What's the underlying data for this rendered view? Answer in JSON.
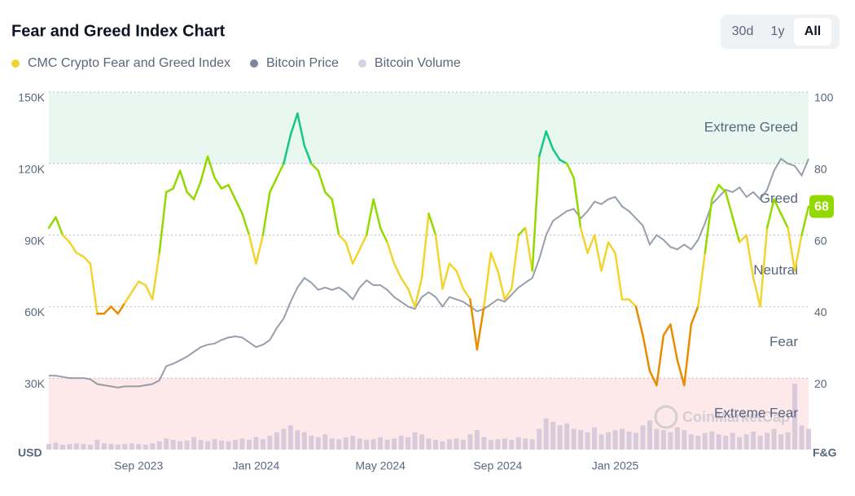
{
  "chart_data": {
    "type": "line",
    "title": "Fear and Greed Index Chart",
    "range_buttons": [
      "30d",
      "1y",
      "All"
    ],
    "selected_range": "All",
    "y_axis_label": "USD",
    "y2_axis_label": "F&G",
    "watermark": "CoinMarketCap",
    "ylim": [
      0,
      150000
    ],
    "yticks": [
      {
        "value": 30000,
        "label": "30K"
      },
      {
        "value": 60000,
        "label": "60K"
      },
      {
        "value": 90000,
        "label": "90K"
      },
      {
        "value": 120000,
        "label": "120K"
      },
      {
        "value": 150000,
        "label": "150K"
      }
    ],
    "y2lim": [
      0,
      100
    ],
    "y2ticks": [
      20,
      40,
      60,
      80,
      100
    ],
    "volume_ylim": [
      0,
      100
    ],
    "grid": true,
    "zones": [
      {
        "name": "Extreme Fear",
        "min": 0,
        "max": 20,
        "color": "#ea3943",
        "band": "#fde9ea"
      },
      {
        "name": "Fear",
        "min": 20,
        "max": 40,
        "color": "#ea8c00"
      },
      {
        "name": "Neutral",
        "min": 40,
        "max": 60,
        "color": "#f3d42f"
      },
      {
        "name": "Greed",
        "min": 60,
        "max": 80,
        "color": "#93d900"
      },
      {
        "name": "Extreme Greed",
        "min": 80,
        "max": 100,
        "color": "#16c784",
        "band": "#e8f8f1"
      }
    ],
    "categories": [
      null,
      null,
      null,
      null,
      null,
      null,
      null,
      null,
      null,
      null,
      null,
      null,
      null,
      "Sep 2023",
      null,
      null,
      null,
      null,
      null,
      null,
      null,
      null,
      null,
      null,
      null,
      null,
      null,
      null,
      null,
      null,
      "Jan 2024",
      null,
      null,
      null,
      null,
      null,
      null,
      null,
      null,
      null,
      null,
      null,
      null,
      null,
      null,
      null,
      null,
      null,
      "May 2024",
      null,
      null,
      null,
      null,
      null,
      null,
      null,
      null,
      null,
      null,
      null,
      null,
      null,
      null,
      null,
      null,
      "Sep 2024",
      null,
      null,
      null,
      null,
      null,
      null,
      null,
      null,
      null,
      null,
      null,
      null,
      null,
      null,
      null,
      null,
      "Jan 2025",
      null,
      null,
      null,
      null,
      null,
      null,
      null,
      null,
      null,
      null,
      null,
      null,
      null,
      null,
      null,
      null,
      null,
      null,
      null,
      null,
      null,
      null,
      null,
      null,
      null,
      null,
      null,
      null
    ],
    "series": [
      {
        "name": "CMC Crypto Fear and Greed Index",
        "color": "#f3d42f",
        "axis": "y2",
        "values": [
          62,
          65,
          60,
          58,
          55,
          54,
          52,
          38,
          38,
          40,
          38,
          41,
          44,
          47,
          46,
          42,
          55,
          72,
          73,
          78,
          72,
          70,
          75,
          82,
          76,
          73,
          74,
          70,
          66,
          60,
          52,
          60,
          72,
          76,
          80,
          88,
          94,
          85,
          80,
          78,
          72,
          70,
          60,
          58,
          52,
          56,
          60,
          70,
          62,
          58,
          52,
          48,
          45,
          40,
          48,
          66,
          60,
          45,
          52,
          50,
          45,
          42,
          28,
          40,
          55,
          50,
          42,
          45,
          60,
          62,
          50,
          82,
          89,
          84,
          81,
          80,
          76,
          62,
          55,
          60,
          50,
          58,
          55,
          42,
          42,
          40,
          32,
          22,
          18,
          32,
          35,
          25,
          18,
          35,
          40,
          55,
          70,
          74,
          72,
          65,
          58,
          60,
          48,
          40,
          62,
          70,
          66,
          62,
          50,
          60,
          68
        ]
      },
      {
        "name": "Bitcoin Price",
        "color": "#7d8799",
        "values": [
          31000,
          31000,
          30500,
          30000,
          30000,
          30000,
          29500,
          27500,
          27000,
          26500,
          26000,
          26500,
          26500,
          26500,
          27000,
          27500,
          29000,
          35000,
          36000,
          37500,
          39000,
          41000,
          43000,
          44000,
          44500,
          46000,
          47000,
          47500,
          47000,
          45000,
          43000,
          44000,
          46000,
          51000,
          55000,
          62000,
          68000,
          72000,
          70000,
          67000,
          68000,
          67000,
          68000,
          66000,
          63000,
          68000,
          71000,
          69000,
          69000,
          67000,
          64000,
          62000,
          60000,
          59000,
          64000,
          66000,
          64000,
          60000,
          64000,
          63000,
          62000,
          60000,
          58000,
          59000,
          61000,
          63000,
          62000,
          65000,
          68000,
          70000,
          72000,
          80000,
          90000,
          96000,
          98000,
          100000,
          101000,
          97000,
          100000,
          104000,
          103000,
          105000,
          106000,
          102000,
          100000,
          97000,
          94000,
          86000,
          90000,
          88000,
          85000,
          84000,
          86000,
          84000,
          88000,
          95000,
          103000,
          106000,
          109000,
          108000,
          110000,
          106000,
          108000,
          105000,
          109000,
          117000,
          122000,
          120000,
          119000,
          115000,
          122000
        ]
      },
      {
        "name": "Bitcoin Volume",
        "color": "#cfc4d8",
        "axis": "volume",
        "values": [
          8,
          10,
          7,
          8,
          9,
          8,
          7,
          14,
          9,
          8,
          7,
          8,
          9,
          8,
          7,
          9,
          12,
          16,
          14,
          12,
          13,
          18,
          14,
          12,
          15,
          13,
          12,
          14,
          16,
          14,
          18,
          15,
          20,
          25,
          30,
          35,
          28,
          25,
          20,
          18,
          22,
          16,
          15,
          18,
          20,
          16,
          14,
          15,
          18,
          14,
          16,
          20,
          18,
          25,
          22,
          16,
          14,
          12,
          15,
          16,
          14,
          22,
          28,
          18,
          14,
          15,
          16,
          14,
          18,
          16,
          15,
          30,
          45,
          40,
          35,
          38,
          30,
          28,
          25,
          32,
          22,
          25,
          28,
          30,
          26,
          24,
          35,
          42,
          30,
          28,
          25,
          32,
          28,
          22,
          20,
          24,
          26,
          22,
          20,
          24,
          18,
          22,
          26,
          20,
          24,
          30,
          22,
          25,
          95,
          35,
          30
        ]
      }
    ]
  }
}
